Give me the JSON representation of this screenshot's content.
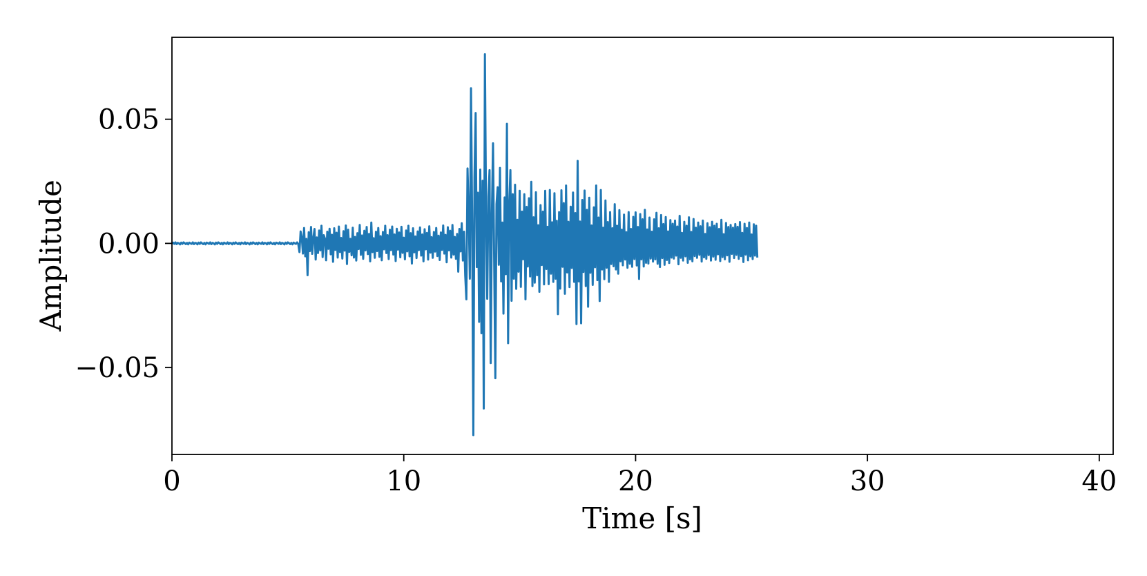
{
  "chart_data": {
    "type": "line",
    "title": "",
    "xlabel": "Time [s]",
    "ylabel": "Amplitude",
    "xlim": [
      0,
      40.6
    ],
    "ylim": [
      -0.085,
      0.083
    ],
    "x_ticks": [
      0,
      10,
      20,
      30,
      40
    ],
    "x_tick_labels": [
      "0",
      "10",
      "20",
      "30",
      "40"
    ],
    "y_ticks": [
      -0.05,
      0.0,
      0.05
    ],
    "y_tick_labels": [
      "−0.05",
      "0.00",
      "0.05"
    ],
    "grid": false,
    "legend": "none",
    "series": [
      {
        "color": "#1f77b4",
        "sample_interval_s": 0.05,
        "x_start": 0,
        "values": [
          0.0,
          0.0003,
          -0.0002,
          0.0004,
          -0.0003,
          0.0002,
          0.0,
          -0.0004,
          0.0003,
          -0.0002,
          0.0004,
          0.0001,
          -0.0003,
          0.0002,
          -0.0004,
          0.0003,
          0.0,
          -0.0002,
          0.0004,
          -0.0003,
          0.0002,
          0.0001,
          -0.0004,
          0.0003,
          -0.0002,
          0.0004,
          0.0,
          -0.0003,
          0.0002,
          -0.0004,
          0.0003,
          0.0001,
          -0.0002,
          0.0004,
          -0.0003,
          0.0002,
          0.0,
          -0.0004,
          0.0003,
          -0.0002,
          0.0004,
          0.0001,
          -0.0003,
          0.0002,
          -0.0004,
          0.0003,
          0.0,
          -0.0002,
          0.0004,
          -0.0003,
          0.0002,
          0.0001,
          -0.0004,
          0.0003,
          -0.0002,
          0.0004,
          0.0,
          -0.0003,
          0.0002,
          -0.0004,
          0.0003,
          0.0001,
          -0.0002,
          0.0004,
          -0.0003,
          0.0002,
          0.0,
          -0.0004,
          0.0003,
          -0.0002,
          0.0004,
          0.0001,
          -0.0003,
          0.0002,
          -0.0004,
          0.0003,
          0.0,
          -0.0002,
          0.0004,
          -0.0003,
          0.0002,
          0.0001,
          -0.0004,
          0.0003,
          -0.0002,
          0.0004,
          0.0,
          -0.0003,
          0.0002,
          -0.0004,
          0.0003,
          0.0001,
          -0.0002,
          0.0004,
          -0.0003,
          0.0002,
          0.0,
          -0.0004,
          0.0003,
          -0.0002,
          0.0004,
          0.0001,
          -0.0003,
          0.0002,
          -0.0004,
          0.0003,
          0.0,
          -0.0002,
          0.0004,
          -0.0003,
          -0.0035,
          0.0048,
          0.0025,
          -0.0041,
          0.0062,
          -0.0052,
          0.0018,
          -0.0128,
          0.0045,
          -0.0031,
          0.0066,
          -0.0042,
          0.0021,
          0.0058,
          -0.0065,
          0.0024,
          -0.0039,
          0.0052,
          -0.0028,
          0.0071,
          -0.0055,
          0.0033,
          0.0019,
          -0.0068,
          0.0047,
          -0.0022,
          0.0059,
          -0.0044,
          0.0035,
          -0.0074,
          0.0061,
          -0.0026,
          0.0043,
          -0.0057,
          0.0068,
          -0.0035,
          0.0022,
          -0.0061,
          0.0049,
          -0.0029,
          0.0072,
          -0.0083,
          0.0055,
          -0.0034,
          0.0018,
          -0.0048,
          0.0063,
          -0.0057,
          0.0026,
          -0.0069,
          0.0041,
          -0.0023,
          0.0074,
          -0.0046,
          0.0032,
          -0.0062,
          0.0051,
          -0.0028,
          0.0066,
          -0.0043,
          0.0038,
          -0.0072,
          0.0084,
          -0.0035,
          0.0021,
          -0.0058,
          0.0047,
          -0.0031,
          0.0062,
          -0.0054,
          0.0029,
          -0.0068,
          0.0046,
          -0.0024,
          0.0071,
          -0.0039,
          0.0033,
          -0.0063,
          0.0055,
          -0.0027,
          0.0068,
          -0.0045,
          0.0036,
          -0.0071,
          0.0059,
          -0.0025,
          0.0044,
          -0.0056,
          0.0067,
          -0.0038,
          0.0023,
          -0.0064,
          0.0052,
          -0.0032,
          0.0071,
          -0.0052,
          0.0041,
          -0.0081,
          0.0061,
          -0.0036,
          0.0028,
          -0.0059,
          0.0048,
          -0.0027,
          0.0064,
          -0.0049,
          0.0036,
          -0.0072,
          0.0057,
          -0.0024,
          0.0042,
          -0.0065,
          0.0069,
          -0.0037,
          0.0025,
          -0.0058,
          0.0046,
          -0.0033,
          0.0062,
          -0.0051,
          0.0031,
          -0.0067,
          0.0044,
          -0.0026,
          0.0072,
          -0.0041,
          0.0034,
          -0.0076,
          0.0065,
          -0.0028,
          0.0051,
          -0.0057,
          0.0074,
          -0.0045,
          0.0026,
          -0.0062,
          0.0038,
          -0.0114,
          0.0058,
          -0.0032,
          0.0081,
          -0.0069,
          0.0047,
          -0.0128,
          -0.0225,
          0.0302,
          0.0125,
          -0.0142,
          0.0625,
          0.0087,
          -0.0772,
          0.0265,
          0.0525,
          -0.0095,
          0.0204,
          -0.0316,
          0.0297,
          -0.0362,
          0.0252,
          -0.0665,
          0.0762,
          0.0126,
          -0.0223,
          0.0189,
          0.0295,
          -0.0482,
          0.0117,
          0.0403,
          -0.0075,
          -0.0543,
          0.0158,
          0.0226,
          -0.0086,
          0.0304,
          -0.0153,
          0.0084,
          -0.0283,
          0.0185,
          -0.0124,
          0.0482,
          -0.0402,
          0.0152,
          0.0295,
          -0.0231,
          0.0198,
          -0.0142,
          0.0236,
          -0.0183,
          0.0095,
          -0.0114,
          0.0212,
          -0.0175,
          0.0128,
          -0.0064,
          0.0198,
          -0.0225,
          0.0147,
          -0.0093,
          0.0182,
          -0.0133,
          0.0248,
          -0.0172,
          0.0105,
          -0.0158,
          0.0206,
          -0.0128,
          0.0073,
          -0.0195,
          0.0154,
          -0.0087,
          0.0128,
          -0.0165,
          0.0212,
          -0.0103,
          0.0067,
          -0.0164,
          0.0215,
          -0.0122,
          0.0085,
          -0.0155,
          0.0202,
          -0.0142,
          0.0091,
          -0.0285,
          0.0126,
          -0.0182,
          0.0214,
          -0.0094,
          0.0162,
          -0.0203,
          0.0233,
          -0.0117,
          0.0087,
          -0.0176,
          0.0148,
          -0.0099,
          0.0205,
          -0.0155,
          0.0122,
          -0.0325,
          0.0332,
          -0.0153,
          0.0088,
          -0.0322,
          0.0175,
          -0.0115,
          0.0213,
          -0.0172,
          0.0135,
          -0.0255,
          0.0184,
          -0.0118,
          0.0072,
          -0.0167,
          0.0145,
          -0.0096,
          0.0233,
          -0.0148,
          0.0104,
          -0.0232,
          0.0215,
          -0.0105,
          0.0063,
          -0.0144,
          0.0173,
          -0.0098,
          0.0086,
          -0.0155,
          0.0126,
          -0.0083,
          0.0061,
          -0.0092,
          0.0158,
          -0.0105,
          0.0071,
          -0.0122,
          0.0134,
          -0.0072,
          0.0055,
          -0.0088,
          0.0116,
          -0.0065,
          0.0045,
          -0.0098,
          0.0126,
          -0.0082,
          0.0058,
          -0.0094,
          0.0107,
          -0.0063,
          0.0125,
          -0.0089,
          0.0066,
          -0.0143,
          0.0118,
          -0.0064,
          0.0097,
          -0.0093,
          0.0135,
          -0.0078,
          0.0056,
          -0.0081,
          0.0104,
          -0.0061,
          0.0047,
          -0.0073,
          0.0097,
          -0.0064,
          0.0123,
          -0.0082,
          0.0061,
          -0.0095,
          0.0114,
          -0.0059,
          0.0078,
          -0.0086,
          0.0106,
          -0.0067,
          0.0048,
          -0.0079,
          0.0094,
          -0.0057,
          0.0079,
          -0.0061,
          0.0092,
          -0.0049,
          0.0068,
          -0.0084,
          0.0111,
          -0.0058,
          0.0042,
          -0.0069,
          0.0087,
          -0.0052,
          0.0071,
          -0.0078,
          0.0105,
          -0.0064,
          0.0046,
          -0.0072,
          0.0098,
          -0.0051,
          0.0063,
          -0.0058,
          0.0084,
          -0.0046,
          0.0069,
          -0.0073,
          0.0092,
          -0.0056,
          0.0038,
          -0.0062,
          0.0081,
          -0.0047,
          0.0065,
          -0.0069,
          0.0087,
          -0.0053,
          0.0071,
          -0.0066,
          0.0079,
          -0.0044,
          0.0058,
          -0.0071,
          0.0095,
          -0.0055,
          0.0037,
          -0.0064,
          0.0082,
          -0.0048,
          0.0066,
          -0.0074,
          0.0074,
          -0.0042,
          0.0063,
          -0.0059,
          0.0078,
          -0.0046,
          0.0067,
          -0.0062,
          0.0086,
          -0.0051,
          0.0042,
          -0.0075,
          0.0079,
          -0.0045,
          0.0062,
          -0.0068,
          0.0084,
          -0.0052,
          0.0036,
          -0.0063,
          0.0077,
          -0.0049,
          0.0071,
          -0.0057
        ]
      }
    ]
  }
}
